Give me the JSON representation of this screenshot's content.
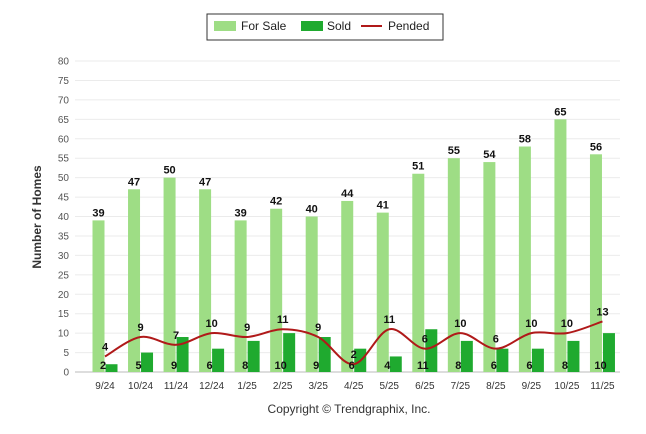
{
  "chart_data": {
    "type": "bar",
    "categories": [
      "9/24",
      "10/24",
      "11/24",
      "12/24",
      "1/25",
      "2/25",
      "3/25",
      "4/25",
      "5/25",
      "6/25",
      "7/25",
      "8/25",
      "9/25",
      "10/25",
      "11/25"
    ],
    "series": [
      {
        "name": "For Sale",
        "kind": "bar",
        "color": "#9edd85",
        "values": [
          39,
          47,
          50,
          47,
          39,
          42,
          40,
          44,
          41,
          51,
          55,
          54,
          58,
          65,
          56
        ]
      },
      {
        "name": "Sold",
        "kind": "bar",
        "color": "#1faa2f",
        "values": [
          2,
          5,
          9,
          6,
          8,
          10,
          9,
          6,
          4,
          11,
          8,
          6,
          6,
          8,
          10
        ]
      },
      {
        "name": "Pended",
        "kind": "line",
        "color": "#b01919",
        "values": [
          4,
          9,
          7,
          10,
          9,
          11,
          9,
          2,
          11,
          6,
          10,
          6,
          10,
          10,
          13
        ]
      }
    ],
    "ylabel": "Number of Homes",
    "xlabel": "",
    "ylim": [
      0,
      80
    ],
    "yticks": [
      0,
      5,
      10,
      15,
      20,
      25,
      30,
      35,
      40,
      45,
      50,
      55,
      60,
      65,
      70,
      75,
      80
    ],
    "legend_position": "top-center",
    "grid": true
  },
  "credit": "Copyright © Trendgraphix, Inc."
}
